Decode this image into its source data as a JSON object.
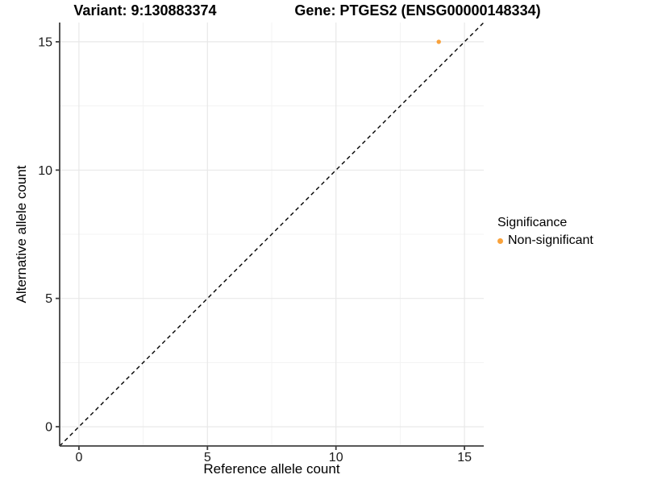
{
  "header": {
    "variant_title": "Variant: 9:130883374",
    "gene_title": "Gene: PTGES2 (ENSG00000148334)"
  },
  "axes": {
    "x": {
      "label": "Reference allele count"
    },
    "y": {
      "label": "Alternative allele count"
    }
  },
  "legend": {
    "title": "Significance",
    "items": [
      {
        "label": "Non-significant",
        "color": "#F9A23C",
        "marker": "circle-icon"
      }
    ]
  },
  "colors": {
    "background": "#FFFFFF",
    "point": "#F9A23C",
    "axis_line": "#404040",
    "tick_label": "#1A1A1A",
    "grid_major": "#E8E8E8",
    "grid_minor": "#F3F3F3",
    "reference_line": "#000000"
  },
  "chart_data": {
    "type": "scatter",
    "title": "Variant: 9:130883374 — Gene: PTGES2 (ENSG00000148334)",
    "xlabel": "Reference allele count",
    "ylabel": "Alternative allele count",
    "xlim": [
      -0.75,
      15.75
    ],
    "ylim": [
      -0.75,
      15.75
    ],
    "xticks": [
      0,
      5,
      10,
      15
    ],
    "yticks": [
      0,
      5,
      10,
      15
    ],
    "grid": "major+minor",
    "legend_position": "right",
    "series": [
      {
        "name": "Non-significant",
        "color": "#F9A23C",
        "points": [
          {
            "x": 14,
            "y": 15
          }
        ]
      }
    ],
    "reference_line": {
      "slope": 1,
      "intercept": 0,
      "style": "dashed",
      "color": "#000000"
    }
  }
}
